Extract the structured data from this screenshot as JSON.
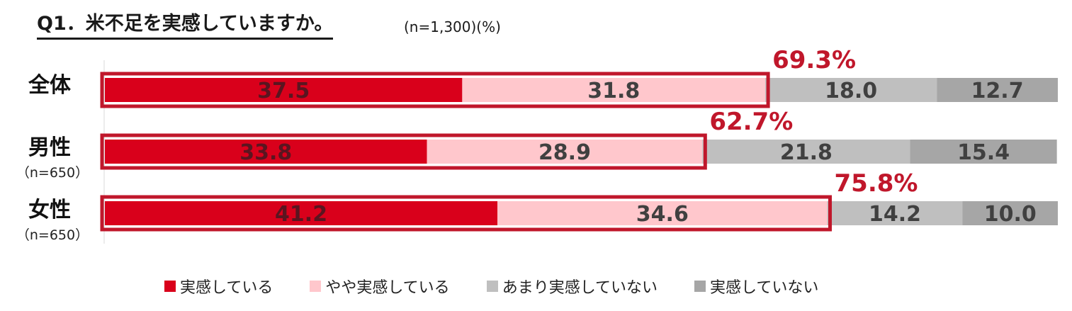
{
  "chart_data": {
    "type": "bar",
    "orientation": "horizontal",
    "stacked": true,
    "title": "Q1．米不足を実感していますか。",
    "subtitle": "(n=1,300)(%)",
    "xlim": [
      0,
      100
    ],
    "grid": false,
    "legend_position": "bottom",
    "categories": [
      {
        "label": "全体",
        "n": ""
      },
      {
        "label": "男性",
        "n": "（n=650）"
      },
      {
        "label": "女性",
        "n": "（n=650）"
      }
    ],
    "series": [
      {
        "name": "実感している",
        "color": "#d9001b",
        "values": [
          37.5,
          33.8,
          41.2
        ],
        "value_color": "#5a1520"
      },
      {
        "name": "やや実感している",
        "color": "#ffc7cc",
        "values": [
          31.8,
          28.9,
          34.6
        ],
        "value_color": "#404040"
      },
      {
        "name": "あまり実感していない",
        "color": "#bfbfbf",
        "values": [
          18.0,
          21.8,
          14.2
        ],
        "value_color": "#404040"
      },
      {
        "name": "実感していない",
        "color": "#a6a6a6",
        "values": [
          12.7,
          15.4,
          10.0
        ],
        "value_color": "#404040"
      }
    ],
    "highlight": {
      "color": "#c0172b",
      "labels": [
        "69.3%",
        "62.7%",
        "75.8%"
      ]
    }
  }
}
